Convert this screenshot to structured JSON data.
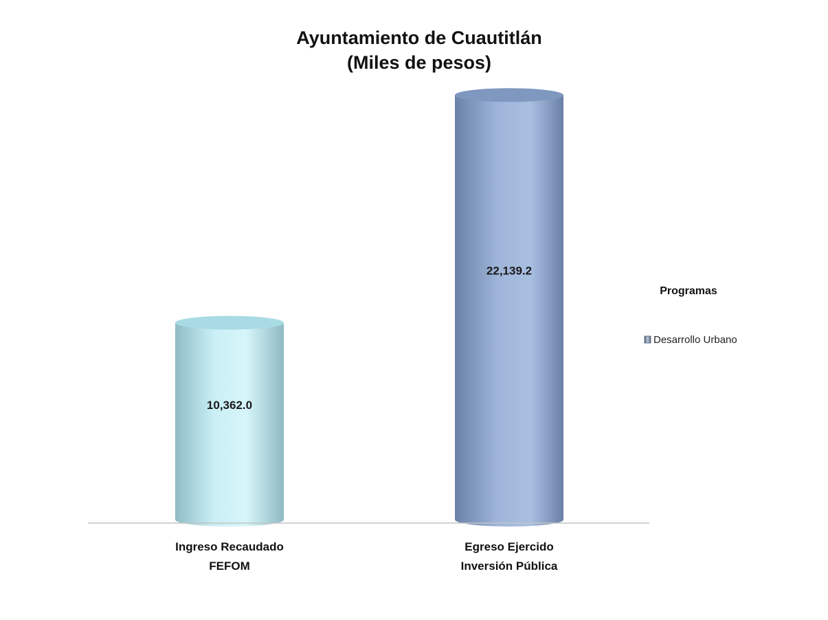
{
  "chart_data": {
    "type": "bar",
    "title_lines": [
      "Ayuntamiento de Cuautitlán",
      "(Miles de pesos)"
    ],
    "categories": [
      [
        "Ingreso Recaudado",
        "FEFOM"
      ],
      [
        "Egreso Ejercido",
        "Inversión Pública"
      ]
    ],
    "series": [
      {
        "name": "Desarrollo Urbano",
        "values": [
          10362.0,
          22139.2
        ]
      }
    ],
    "data_labels": [
      "10,362.0",
      "22,139.2"
    ],
    "legend": {
      "title": "Programas",
      "position": "right"
    },
    "bar_style": "cylinder",
    "bar_colors": [
      "#b8e6ef",
      "#8fa8cf"
    ],
    "axis_line_color": "#bfbfbf",
    "ylim": [
      0,
      23500
    ],
    "grid": false
  }
}
